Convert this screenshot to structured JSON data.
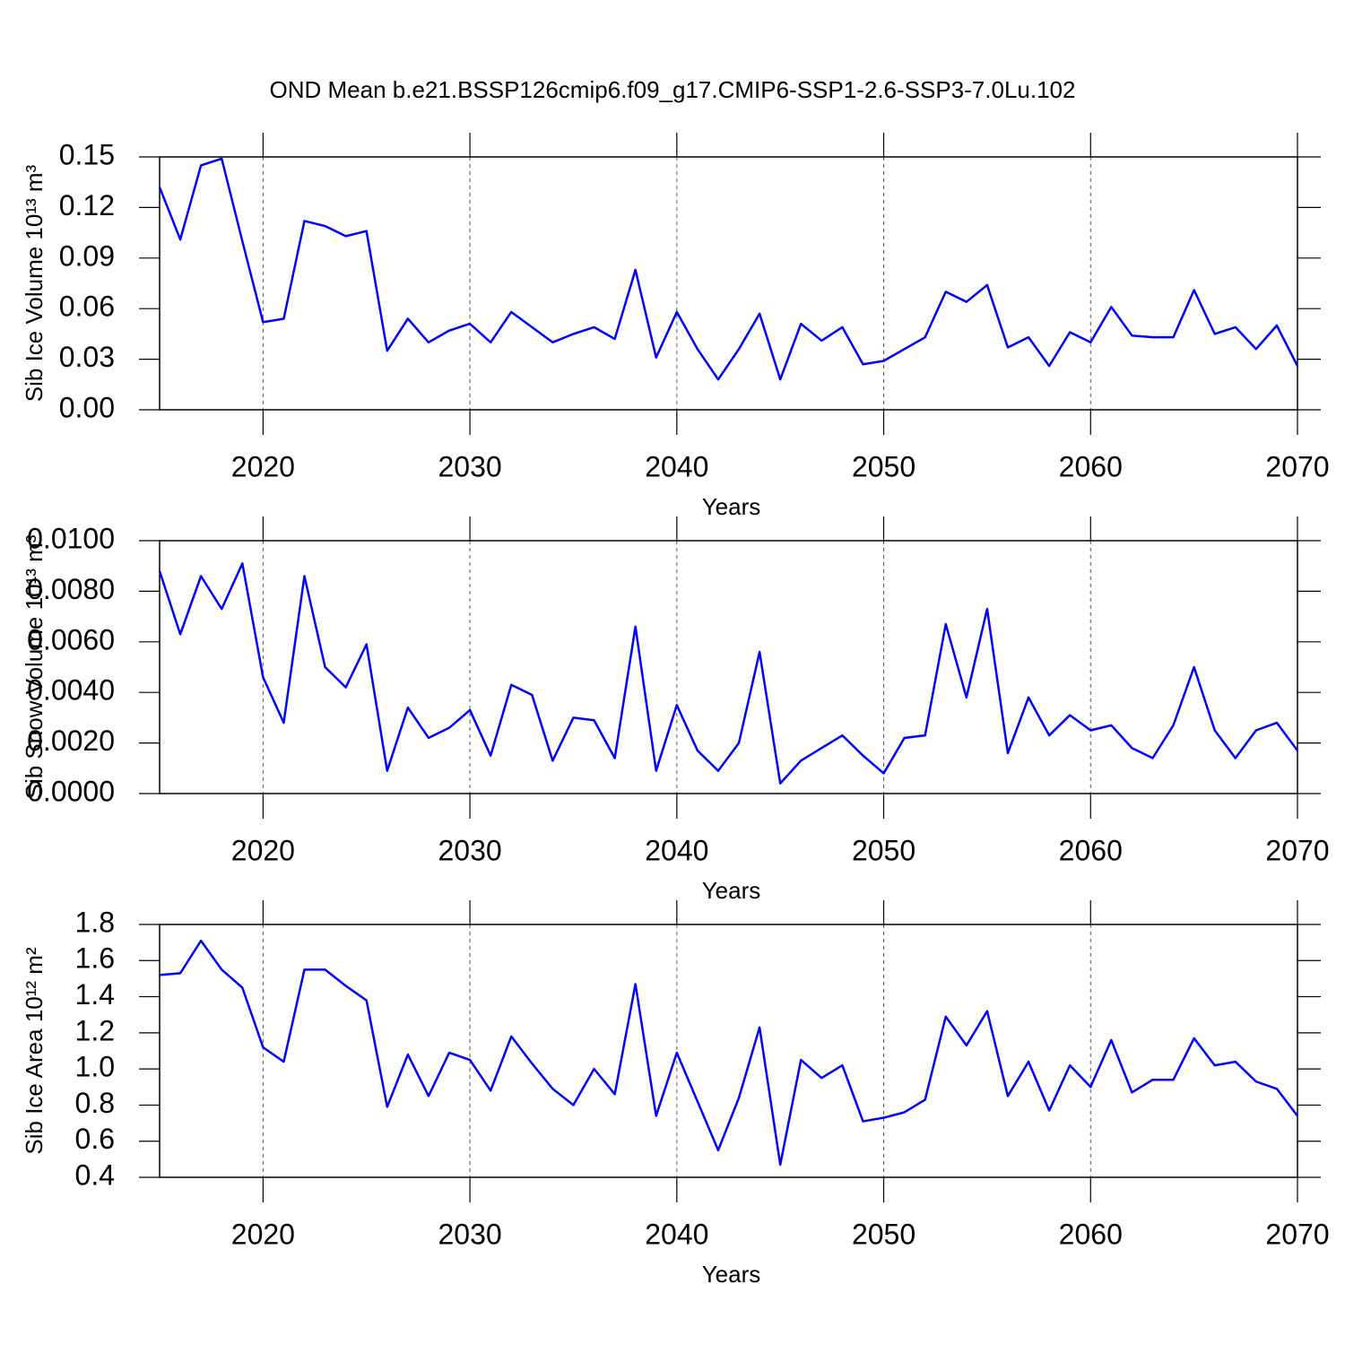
{
  "title": "OND Mean b.e21.BSSP126cmip6.f09_g17.CMIP6-SSP1-2.6-SSP3-7.0Lu.102",
  "chart_data": [
    {
      "type": "line",
      "ylabel": "Sib Ice Volume 10¹³ m³",
      "xlabel": "Years",
      "color": "#0000ff",
      "x": [
        2015,
        2016,
        2017,
        2018,
        2019,
        2020,
        2021,
        2022,
        2023,
        2024,
        2025,
        2026,
        2027,
        2028,
        2029,
        2030,
        2031,
        2032,
        2033,
        2034,
        2035,
        2036,
        2037,
        2038,
        2039,
        2040,
        2041,
        2042,
        2043,
        2044,
        2045,
        2046,
        2047,
        2048,
        2049,
        2050,
        2051,
        2052,
        2053,
        2054,
        2055,
        2056,
        2057,
        2058,
        2059,
        2060,
        2061,
        2062,
        2063,
        2064,
        2065,
        2066,
        2067,
        2068,
        2069,
        2070
      ],
      "values": [
        0.132,
        0.101,
        0.145,
        0.149,
        0.1,
        0.052,
        0.054,
        0.112,
        0.109,
        0.103,
        0.106,
        0.035,
        0.054,
        0.04,
        0.047,
        0.051,
        0.04,
        0.058,
        0.049,
        0.04,
        0.045,
        0.049,
        0.042,
        0.083,
        0.031,
        0.058,
        0.036,
        0.018,
        0.036,
        0.057,
        0.018,
        0.051,
        0.041,
        0.049,
        0.027,
        0.029,
        0.036,
        0.043,
        0.07,
        0.064,
        0.074,
        0.037,
        0.043,
        0.026,
        0.046,
        0.04,
        0.061,
        0.044,
        0.043,
        0.043,
        0.071,
        0.045,
        0.049,
        0.036,
        0.05,
        0.026
      ],
      "xlim": [
        2015,
        2070
      ],
      "xticks": [
        2020,
        2030,
        2040,
        2050,
        2060,
        2070
      ],
      "ylim": [
        0,
        0.15
      ],
      "yticks": [
        {
          "value": 0,
          "label": "0.00"
        },
        0.03,
        0.06,
        0.09,
        0.12,
        0.15
      ],
      "grid": true
    },
    {
      "type": "line",
      "ylabel": "Sib Snow Volume 10¹³ m³",
      "xlabel": "Years",
      "color": "#0000ff",
      "x": [
        2015,
        2016,
        2017,
        2018,
        2019,
        2020,
        2021,
        2022,
        2023,
        2024,
        2025,
        2026,
        2027,
        2028,
        2029,
        2030,
        2031,
        2032,
        2033,
        2034,
        2035,
        2036,
        2037,
        2038,
        2039,
        2040,
        2041,
        2042,
        2043,
        2044,
        2045,
        2046,
        2047,
        2048,
        2049,
        2050,
        2051,
        2052,
        2053,
        2054,
        2055,
        2056,
        2057,
        2058,
        2059,
        2060,
        2061,
        2062,
        2063,
        2064,
        2065,
        2066,
        2067,
        2068,
        2069,
        2070
      ],
      "values": [
        0.0088,
        0.0063,
        0.0086,
        0.0073,
        0.0091,
        0.0046,
        0.0028,
        0.0086,
        0.005,
        0.0042,
        0.0059,
        0.0009,
        0.0034,
        0.0022,
        0.0026,
        0.0033,
        0.0015,
        0.0043,
        0.0039,
        0.0013,
        0.003,
        0.0029,
        0.0014,
        0.0066,
        0.0009,
        0.0035,
        0.0017,
        0.0009,
        0.002,
        0.0056,
        0.0004,
        0.0013,
        0.0018,
        0.0023,
        0.0015,
        0.0008,
        0.0022,
        0.0023,
        0.0067,
        0.0038,
        0.0073,
        0.0016,
        0.0038,
        0.0023,
        0.0031,
        0.0025,
        0.0027,
        0.0018,
        0.0014,
        0.0027,
        0.005,
        0.0025,
        0.0014,
        0.0025,
        0.0028,
        0.0017
      ],
      "xlim": [
        2015,
        2070
      ],
      "xticks": [
        2020,
        2030,
        2040,
        2050,
        2060,
        2070
      ],
      "ylim": [
        0,
        0.01
      ],
      "yticks": [
        {
          "value": 0,
          "label": "0.0000"
        },
        {
          "value": 0.002,
          "label": "0.0020"
        },
        {
          "value": 0.004,
          "label": "0.0040"
        },
        {
          "value": 0.006,
          "label": "0.0060"
        },
        {
          "value": 0.008,
          "label": "0.0080"
        },
        {
          "value": 0.01,
          "label": "0.0100"
        }
      ],
      "grid": true
    },
    {
      "type": "line",
      "ylabel": "Sib Ice Area 10¹² m²",
      "xlabel": "Years",
      "color": "#0000ff",
      "x": [
        2015,
        2016,
        2017,
        2018,
        2019,
        2020,
        2021,
        2022,
        2023,
        2024,
        2025,
        2026,
        2027,
        2028,
        2029,
        2030,
        2031,
        2032,
        2033,
        2034,
        2035,
        2036,
        2037,
        2038,
        2039,
        2040,
        2041,
        2042,
        2043,
        2044,
        2045,
        2046,
        2047,
        2048,
        2049,
        2050,
        2051,
        2052,
        2053,
        2054,
        2055,
        2056,
        2057,
        2058,
        2059,
        2060,
        2061,
        2062,
        2063,
        2064,
        2065,
        2066,
        2067,
        2068,
        2069,
        2070
      ],
      "values": [
        1.52,
        1.53,
        1.71,
        1.55,
        1.45,
        1.12,
        1.04,
        1.55,
        1.55,
        1.46,
        1.38,
        0.79,
        1.08,
        0.85,
        1.09,
        1.05,
        0.88,
        1.18,
        1.03,
        0.89,
        0.8,
        1.0,
        0.86,
        1.47,
        0.74,
        1.09,
        0.82,
        0.55,
        0.84,
        1.23,
        0.47,
        1.05,
        0.95,
        1.02,
        0.71,
        0.73,
        0.76,
        0.83,
        1.29,
        1.13,
        1.32,
        0.85,
        1.04,
        0.77,
        1.02,
        0.9,
        1.16,
        0.87,
        0.94,
        0.94,
        1.17,
        1.02,
        1.04,
        0.93,
        0.89,
        0.74
      ],
      "xlim": [
        2015,
        2070
      ],
      "xticks": [
        2020,
        2030,
        2040,
        2050,
        2060,
        2070
      ],
      "ylim": [
        0.4,
        1.8
      ],
      "yticks": [
        0.4,
        0.6,
        0.8,
        {
          "value": 1,
          "label": "1.0"
        },
        1.2,
        1.4,
        1.6,
        1.8
      ],
      "grid": true
    }
  ]
}
